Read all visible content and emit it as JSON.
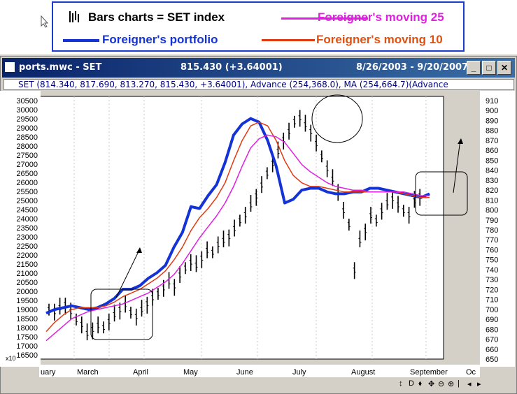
{
  "legend": {
    "bars_label": "Bars charts = SET index",
    "portfolio_label": "Foreigner's portfolio",
    "ma25_label": "Foreigner's moving 25",
    "ma10_label": "Foreigner's moving 10",
    "colors": {
      "bars": "#000000",
      "portfolio": "#1433d6",
      "ma25": "#e020e0",
      "ma10": "#e03a10"
    }
  },
  "window": {
    "file": "ports.mwc - SET",
    "last": "815.430 (+3.64001)",
    "range": "8/26/2003 - 9/20/2007",
    "info": "SET (814.340, 817.690, 813.270, 815.430, +3.64001), Advance  (254,368.0), MA  (254,664.7)(Advance"
  },
  "left_axis": {
    "ticks": [
      "30500",
      "30000",
      "29500",
      "29000",
      "28500",
      "28000",
      "27500",
      "27000",
      "26500",
      "26000",
      "25500",
      "25000",
      "24500",
      "24000",
      "23500",
      "23000",
      "22500",
      "22000",
      "21500",
      "21000",
      "20500",
      "20000",
      "19500",
      "19000",
      "18500",
      "18000",
      "17500",
      "17000",
      "16500"
    ],
    "multiplier": "x10"
  },
  "right_axis": {
    "ticks": [
      "910",
      "900",
      "890",
      "880",
      "870",
      "860",
      "850",
      "840",
      "830",
      "820",
      "810",
      "800",
      "790",
      "780",
      "770",
      "760",
      "750",
      "740",
      "730",
      "720",
      "710",
      "700",
      "690",
      "680",
      "670",
      "660",
      "650"
    ]
  },
  "x_axis": {
    "months": [
      "uary",
      "March",
      "April",
      "May",
      "June",
      "July",
      "August",
      "September",
      "Oc"
    ]
  },
  "nav": {
    "buttons": [
      "↕",
      "D",
      "⬧",
      "✥",
      "⊖",
      "⊕",
      "|",
      "◂",
      "▸"
    ]
  },
  "chart_data": {
    "type": "line",
    "x": [
      0,
      4,
      8,
      12,
      16,
      20,
      24,
      28,
      32,
      36,
      40,
      44,
      48,
      52,
      56,
      60,
      64,
      68,
      72,
      76,
      80,
      84,
      88,
      92,
      96,
      100,
      104,
      108,
      112,
      116,
      120,
      124,
      128,
      132,
      136,
      140,
      144,
      148,
      152,
      156,
      160,
      164,
      168,
      172,
      176,
      180
    ],
    "series": [
      {
        "name": "Foreigner's portfolio",
        "values": [
          19000,
          19200,
          19300,
          19400,
          19300,
          19200,
          19300,
          19500,
          19800,
          20300,
          20300,
          20500,
          20900,
          21200,
          21600,
          22600,
          23400,
          24800,
          24700,
          25400,
          26000,
          27200,
          28700,
          29300,
          29600,
          29400,
          28400,
          27000,
          25000,
          25200,
          25700,
          25800,
          25800,
          25600,
          25500,
          25500,
          25600,
          25600,
          25800,
          25800,
          25700,
          25600,
          25500,
          25400,
          25300,
          25500
        ]
      },
      {
        "name": "Foreigner's moving 10",
        "values": [
          18000,
          18500,
          18900,
          19200,
          19300,
          19300,
          19300,
          19400,
          19600,
          19900,
          20100,
          20300,
          20600,
          20900,
          21300,
          21900,
          22600,
          23500,
          24200,
          24700,
          25300,
          26100,
          27300,
          28400,
          29200,
          29400,
          29200,
          28400,
          27300,
          26500,
          26100,
          25900,
          25900,
          25800,
          25700,
          25600,
          25600,
          25600,
          25600,
          25600,
          25600,
          25600,
          25500,
          25400,
          25300,
          25300
        ]
      },
      {
        "name": "Foreigner's moving 25",
        "values": [
          17500,
          17900,
          18300,
          18700,
          18900,
          19100,
          19200,
          19300,
          19400,
          19500,
          19700,
          19900,
          20100,
          20400,
          20700,
          21100,
          21700,
          22400,
          23100,
          23700,
          24300,
          25000,
          25900,
          27000,
          28000,
          28500,
          28700,
          28600,
          28300,
          27700,
          27100,
          26700,
          26400,
          26100,
          25900,
          25800,
          25700,
          25700,
          25600,
          25600,
          25600,
          25600,
          25600,
          25500,
          25400,
          25400
        ]
      }
    ],
    "ylim_left": [
      16500,
      30500
    ],
    "ylim_right": [
      650,
      910
    ],
    "xlabel": "",
    "ylabel": ""
  }
}
